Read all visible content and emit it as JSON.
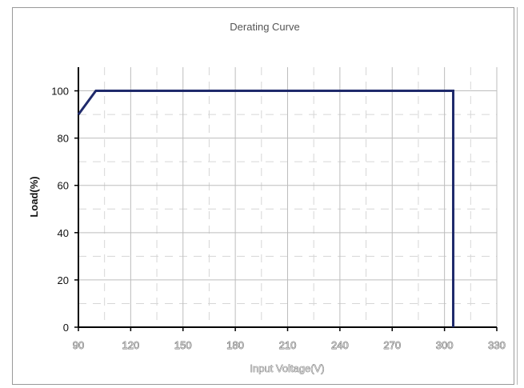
{
  "chart_data": {
    "type": "line",
    "title": "Derating Curve",
    "xlabel": "Input Voltage(V)",
    "ylabel": "Load(%)",
    "xlim": [
      90,
      330
    ],
    "ylim": [
      0,
      110
    ],
    "x_ticks": [
      90,
      120,
      150,
      180,
      210,
      240,
      270,
      300,
      330
    ],
    "y_ticks": [
      0,
      20,
      40,
      60,
      80,
      100
    ],
    "grid": true,
    "series": [
      {
        "x": [
          90,
          100,
          305,
          305
        ],
        "y": [
          90,
          100,
          100,
          0
        ]
      }
    ],
    "colors": {
      "line": "#1f2a6b",
      "grid_major": "#bdbdbd",
      "grid_minor": "#d6d6d6",
      "axis": "#000000"
    }
  }
}
